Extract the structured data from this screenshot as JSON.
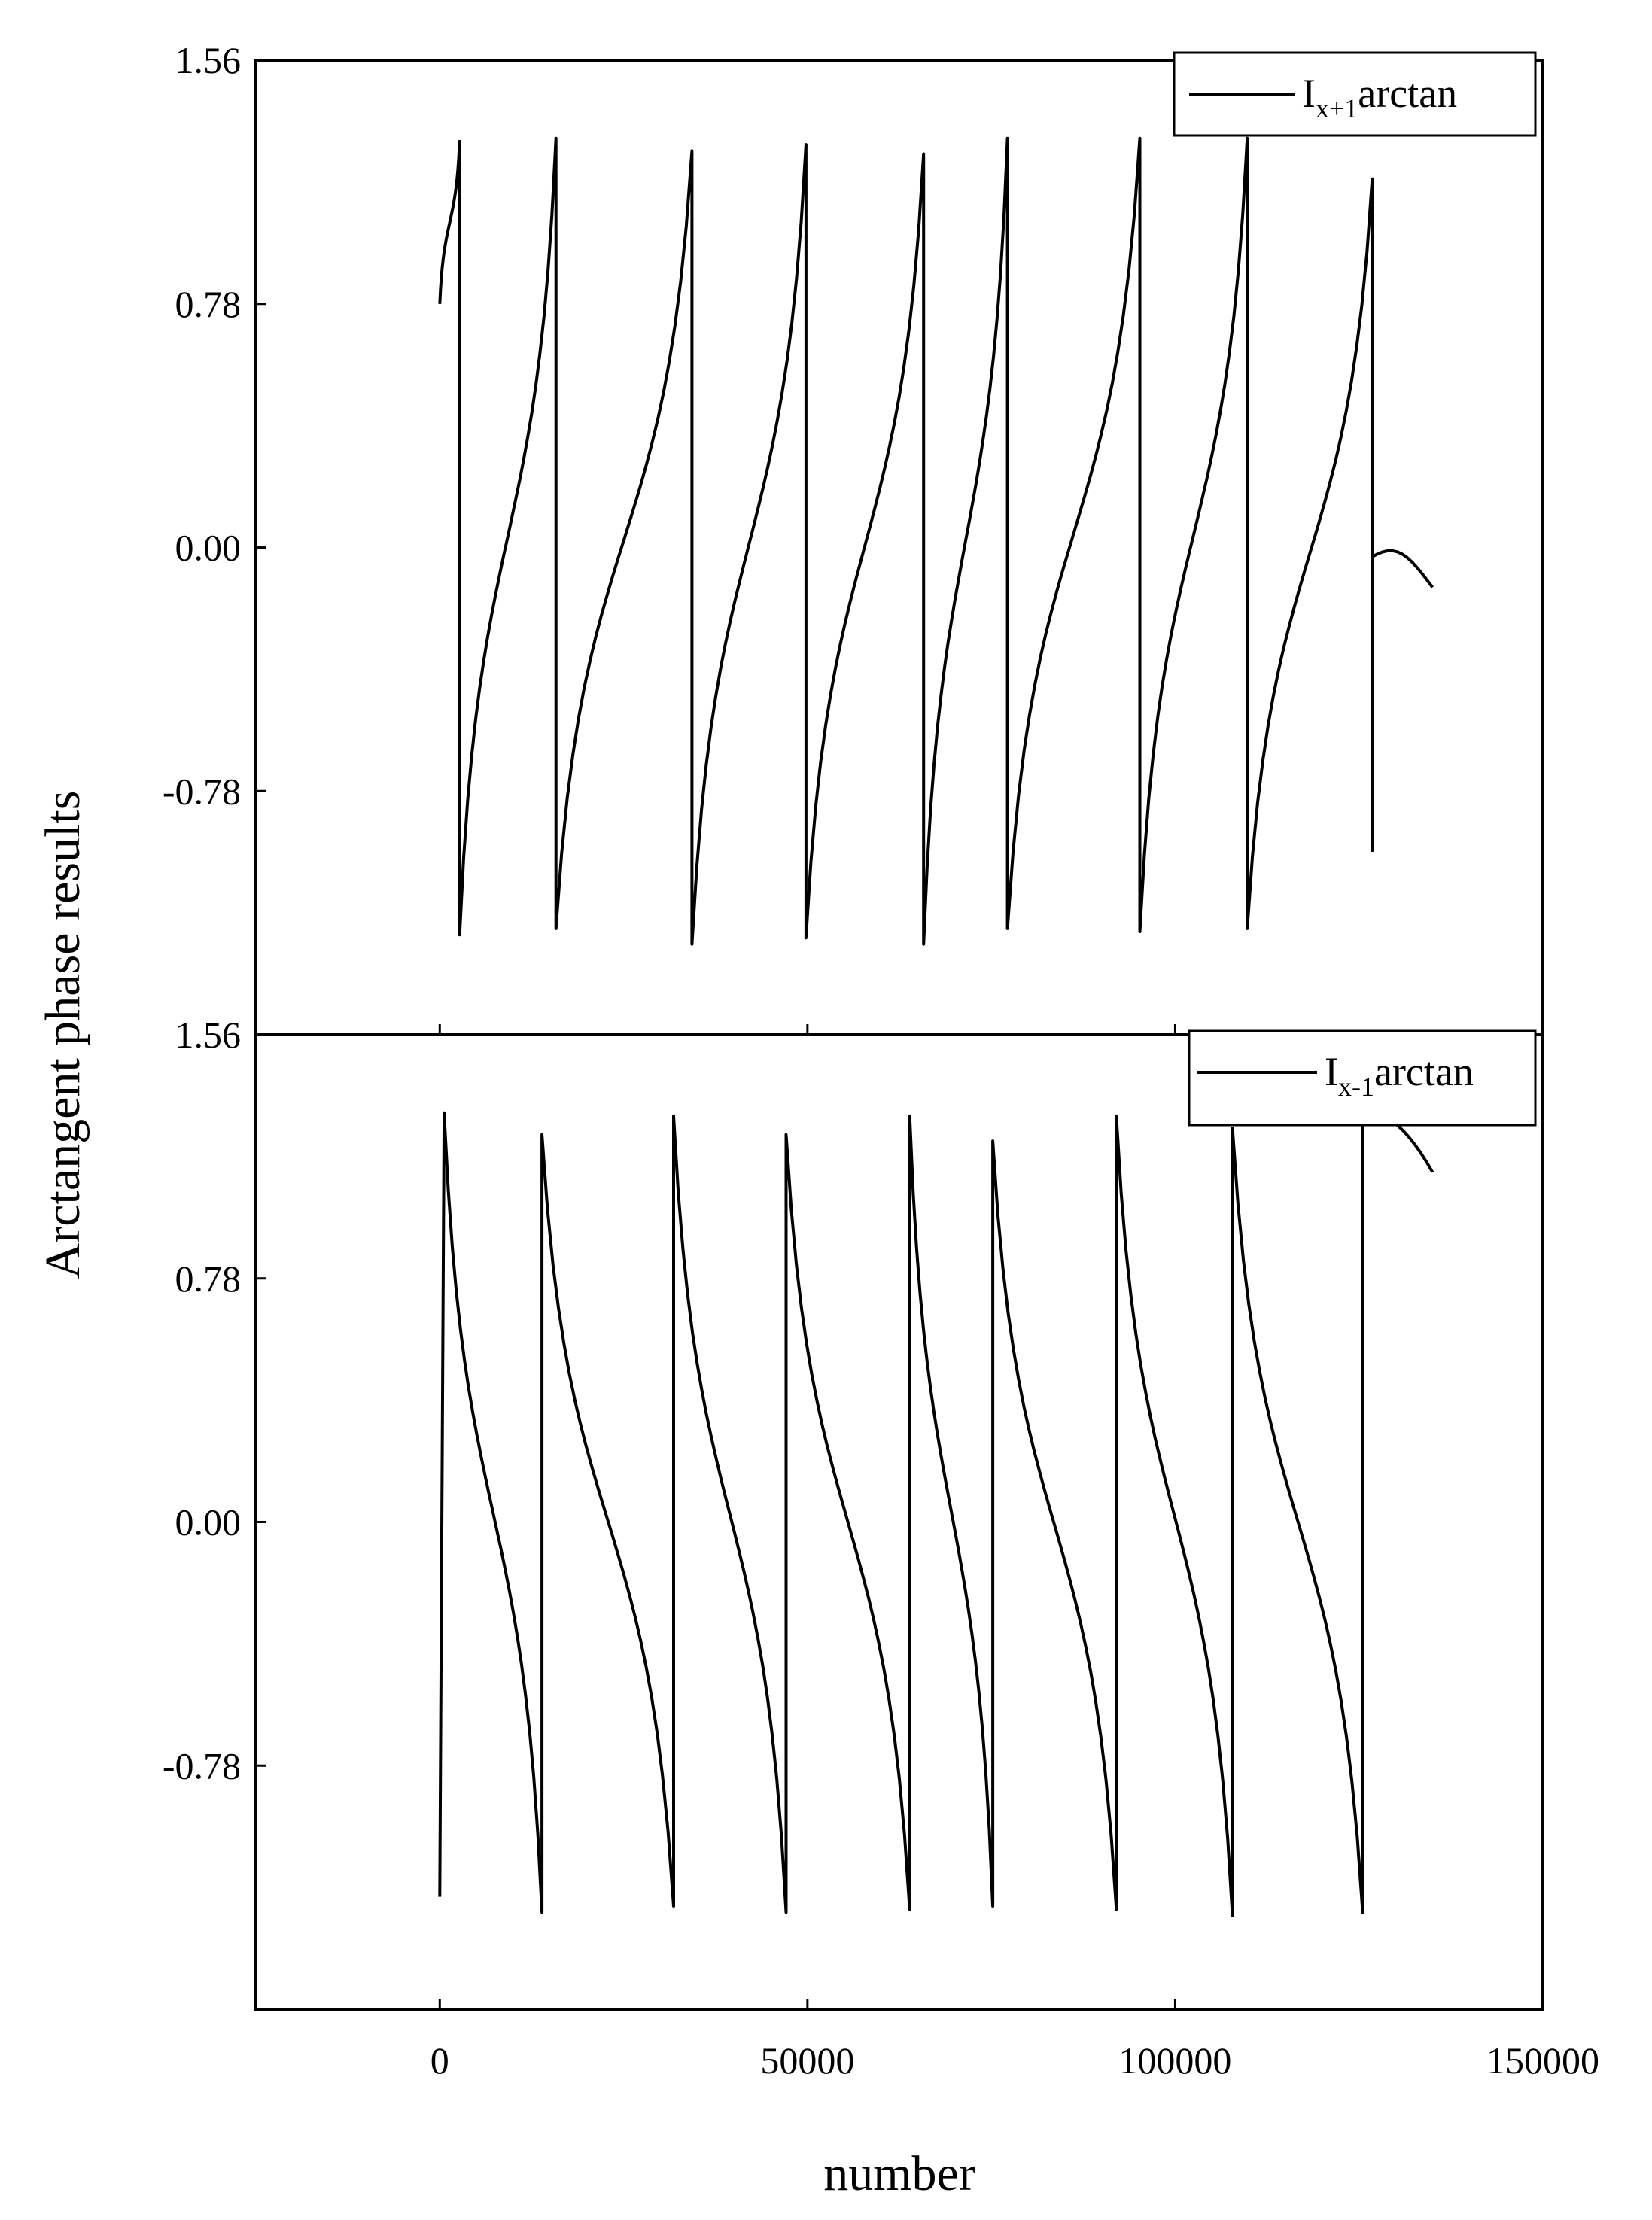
{
  "chart_data": {
    "type": "line",
    "xlabel": "number",
    "ylabel": "Arctangent phase results",
    "xlim": [
      -25000,
      150000
    ],
    "x_ticks": [
      "0",
      "50000",
      "100000",
      "150000"
    ],
    "x_tick_values": [
      0,
      50000,
      100000,
      150000
    ],
    "panels": [
      {
        "name": "top",
        "ylim": [
          -1.56,
          1.56
        ],
        "y_ticks": [
          "1.56",
          "0.78",
          "0.00",
          "-0.78"
        ],
        "y_tick_values": [
          1.56,
          0.78,
          0.0,
          -0.78
        ],
        "legend": {
          "base": "I",
          "sub": "x+1",
          "suffix": "arctan",
          "position": "top-right"
        },
        "series": [
          {
            "name": "I_x+1 arctan",
            "shape": "sawtooth-up",
            "start": 0.76,
            "end_tail": -0.1,
            "segments": [
              {
                "x0": 0,
                "x1": 2700,
                "y0": 0.78,
                "y1": 1.3
              },
              {
                "x0": 2700,
                "x1": 15800,
                "y0": -1.24,
                "y1": 1.31
              },
              {
                "x0": 15800,
                "x1": 34300,
                "y0": -1.22,
                "y1": 1.27
              },
              {
                "x0": 34300,
                "x1": 49800,
                "y0": -1.27,
                "y1": 1.29
              },
              {
                "x0": 49800,
                "x1": 65800,
                "y0": -1.25,
                "y1": 1.26
              },
              {
                "x0": 65800,
                "x1": 77200,
                "y0": -1.27,
                "y1": 1.31
              },
              {
                "x0": 77200,
                "x1": 95200,
                "y0": -1.22,
                "y1": 1.31
              },
              {
                "x0": 95200,
                "x1": 109800,
                "y0": -1.23,
                "y1": 1.31
              },
              {
                "x0": 109800,
                "x1": 126800,
                "y0": -1.22,
                "y1": 1.18
              }
            ],
            "spike": {
              "x": 126800,
              "low": -0.97,
              "high": 1.18
            },
            "tail": {
              "x0": 126800,
              "x1": 135000,
              "y0": -0.03,
              "y1": -0.11
            }
          }
        ]
      },
      {
        "name": "bottom",
        "ylim": [
          -1.56,
          1.56
        ],
        "y_ticks": [
          "1.56",
          "0.78",
          "0.00",
          "-0.78"
        ],
        "y_tick_values": [
          1.56,
          0.78,
          0.0,
          -0.78
        ],
        "legend": {
          "base": "I",
          "sub": "x-1",
          "suffix": "arctan",
          "position": "top-right"
        },
        "series": [
          {
            "name": "I_x-1 arctan",
            "shape": "sawtooth-down",
            "segments": [
              {
                "x0": 600,
                "x1": 13900,
                "y0": 1.31,
                "y1": -1.25
              },
              {
                "x0": 13900,
                "x1": 31800,
                "y0": 1.24,
                "y1": -1.23
              },
              {
                "x0": 31800,
                "x1": 47100,
                "y0": 1.3,
                "y1": -1.25
              },
              {
                "x0": 47100,
                "x1": 63900,
                "y0": 1.24,
                "y1": -1.24
              },
              {
                "x0": 63900,
                "x1": 75200,
                "y0": 1.3,
                "y1": -1.23
              },
              {
                "x0": 75200,
                "x1": 92000,
                "y0": 1.22,
                "y1": -1.24
              },
              {
                "x0": 92000,
                "x1": 107800,
                "y0": 1.3,
                "y1": -1.26
              },
              {
                "x0": 107800,
                "x1": 125500,
                "y0": 1.26,
                "y1": -1.25
              }
            ],
            "start": {
              "x": 0,
              "y": -1.2
            },
            "tail": {
              "x0": 125500,
              "x1": 135000,
              "y0": 1.32,
              "y1": 1.12
            }
          }
        ]
      }
    ]
  }
}
